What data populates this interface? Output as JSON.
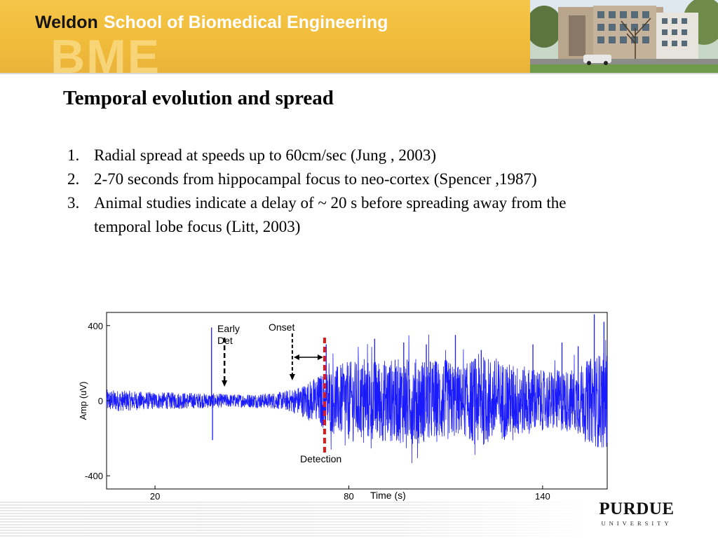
{
  "header": {
    "brand_bold": "Weldon",
    "brand_rest": "School of Biomedical Engineering",
    "watermark": "BME"
  },
  "slide": {
    "title": "Temporal evolution and spread",
    "bullets": [
      {
        "num": "1.",
        "text": "Radial spread at speeds up to 60cm/sec  (Jung , 2003)"
      },
      {
        "num": "2.",
        "text": "2-70 seconds from hippocampal focus to neo-cortex (Spencer ,1987)"
      },
      {
        "num": "3.",
        "text": "Animal studies indicate a delay of ~ 20 s before spreading away from the temporal lobe focus (Litt, 2003)"
      }
    ]
  },
  "figure": {
    "ylabel": "Amp (uV)",
    "xlabel": "Time (s)",
    "y_ticks": [
      "400",
      "0",
      "-400"
    ],
    "x_ticks": [
      "20",
      "80",
      "140"
    ],
    "annotations": {
      "early_det_line1": "Early",
      "early_det_line2": "Det",
      "onset": "Onset",
      "detection": "Detection"
    },
    "colors": {
      "signal": "#1a1aff",
      "detection_line": "#e01818",
      "annotation": "#000000"
    }
  },
  "chart_data": {
    "type": "line",
    "ylabel": "Amp (uV)",
    "xlabel": "Time (s)",
    "xlim": [
      5,
      160
    ],
    "ylim": [
      -470,
      470
    ],
    "x_ticks": [
      20,
      80,
      140
    ],
    "y_ticks": [
      400,
      0,
      -400
    ],
    "series": [
      {
        "envelope_x": [
          5,
          10,
          20,
          28,
          35,
          45,
          55,
          60,
          65,
          70,
          75,
          80,
          90,
          100,
          110,
          115,
          120,
          130,
          140,
          150,
          155,
          158
        ],
        "envelope_amp": [
          60,
          55,
          45,
          45,
          40,
          35,
          40,
          50,
          80,
          130,
          180,
          210,
          220,
          230,
          220,
          180,
          250,
          200,
          160,
          170,
          230,
          260
        ],
        "spikes": [
          {
            "x": 37.5,
            "y": 390
          },
          {
            "x": 37.8,
            "y": -210
          },
          {
            "x": 73,
            "y": 300
          },
          {
            "x": 88,
            "y": 330
          },
          {
            "x": 97,
            "y": 310
          },
          {
            "x": 104,
            "y": 300
          },
          {
            "x": 113,
            "y": 350
          },
          {
            "x": 121,
            "y": 270
          },
          {
            "x": 137,
            "y": 300
          },
          {
            "x": 146,
            "y": 310
          },
          {
            "x": 151,
            "y": 290
          },
          {
            "x": 156,
            "y": 460
          },
          {
            "x": 159,
            "y": 420
          }
        ]
      }
    ],
    "markers": {
      "early_det_x": 41.5,
      "onset_x": 62.5,
      "detection_x": 72.5
    },
    "grid": false
  },
  "footer": {
    "logo_main": "PURDUE",
    "logo_sub": "UNIVERSITY"
  }
}
